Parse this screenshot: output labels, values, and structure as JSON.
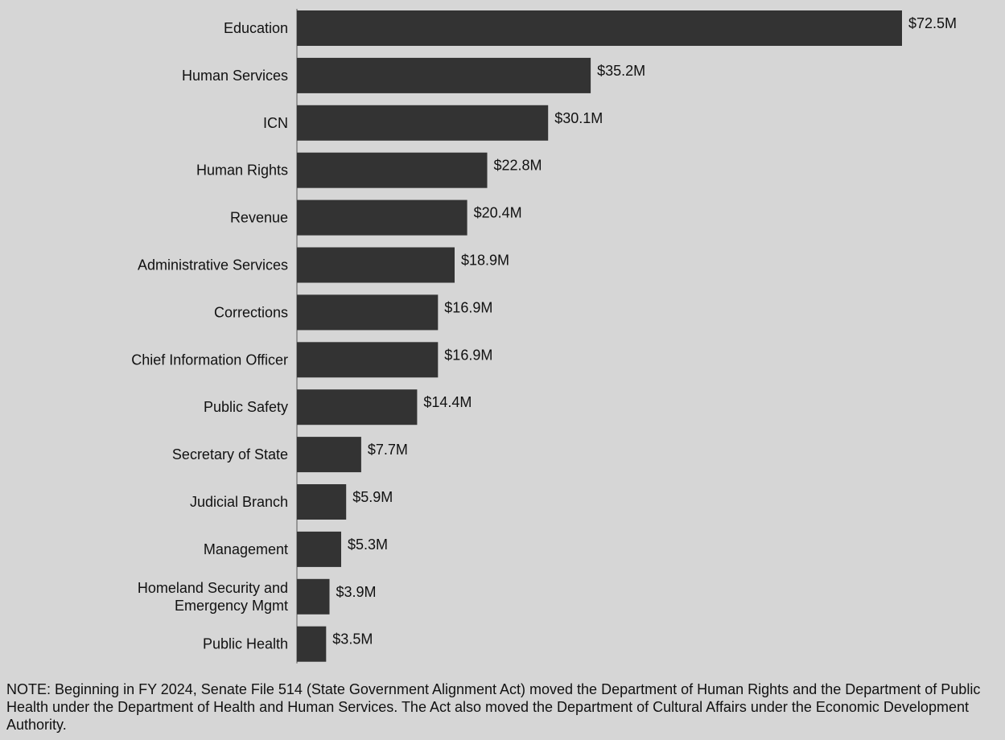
{
  "chart_data": {
    "type": "bar",
    "orientation": "horizontal",
    "title": "",
    "xlabel": "",
    "ylabel": "",
    "grid": false,
    "categories": [
      [
        "Education"
      ],
      [
        "Human Services"
      ],
      [
        "ICN"
      ],
      [
        "Human Rights"
      ],
      [
        "Revenue"
      ],
      [
        "Administrative Services"
      ],
      [
        "Corrections"
      ],
      [
        "Chief Information Officer"
      ],
      [
        "Public Safety"
      ],
      [
        "Secretary of State"
      ],
      [
        "Judicial Branch"
      ],
      [
        "Management"
      ],
      [
        "Homeland Security and",
        "Emergency Mgmt"
      ],
      [
        "Public Health"
      ]
    ],
    "values": [
      72.5,
      35.2,
      30.1,
      22.8,
      20.4,
      18.9,
      16.9,
      16.9,
      14.4,
      7.7,
      5.9,
      5.3,
      3.9,
      3.5
    ],
    "data_labels": [
      "$72.5M",
      "$35.2M",
      "$30.1M",
      "$22.8M",
      "$20.4M",
      "$18.9M",
      "$16.9M",
      "$16.9M",
      "$14.4M",
      "$7.7M",
      "$5.9M",
      "$5.3M",
      "$3.9M",
      "$3.5M"
    ],
    "unit": "$M",
    "colors": {
      "bar": "#333333",
      "background": "#d6d6d6",
      "text": "#111111"
    }
  },
  "note": "NOTE: Beginning in FY 2024, Senate File 514 (State Government Alignment Act) moved the Department of Human Rights and the Department of Public Health under the Department of Health and Human Services. The Act also moved the Department of Cultural Affairs under the Economic Development Authority."
}
